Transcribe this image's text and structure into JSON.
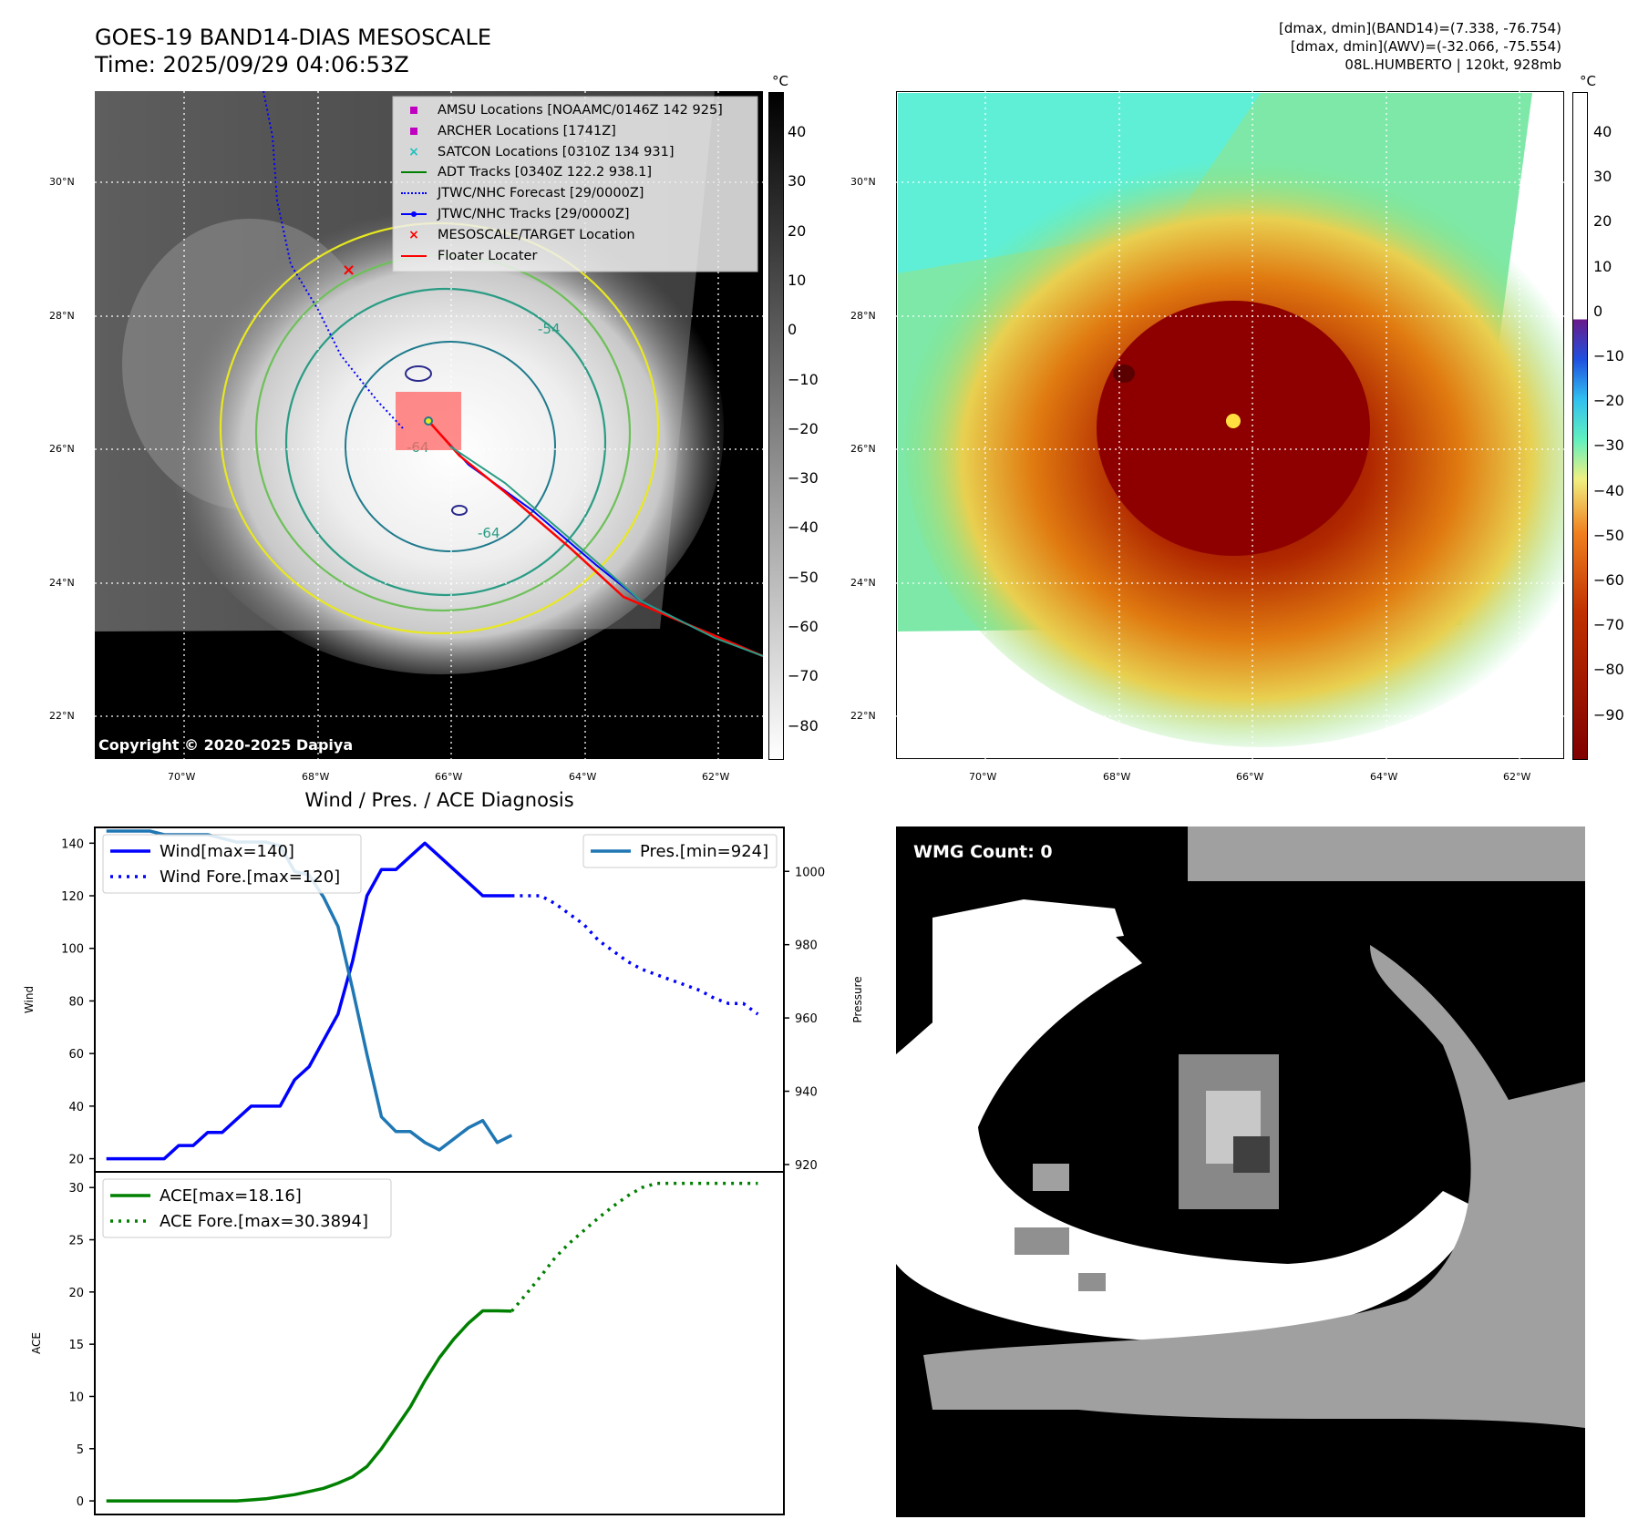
{
  "header": {
    "title_line1": "GOES-19 BAND14-DIAS MESOSCALE",
    "title_line2": "Time: 2025/09/29 04:06:53Z",
    "info_line1": "[dmax, dmin](BAND14)=(7.338, -76.754)",
    "info_line2": "[dmax, dmin](AWV)=(-32.066, -75.554)",
    "info_line3": "08L.HUMBERTO | 120kt, 928mb"
  },
  "map_left": {
    "copyright": "Copyright © 2020-2025 Dapiya",
    "contour_labels": [
      "-54",
      "-64",
      "-64"
    ],
    "legend": [
      {
        "label": "AMSU Locations [NOAAMC/0146Z 142 925]",
        "symbol": "square",
        "color": "#c000c0"
      },
      {
        "label": "ARCHER Locations [1741Z]",
        "symbol": "square",
        "color": "#c000c0"
      },
      {
        "label": "SATCON Locations [0310Z 134 931]",
        "symbol": "x",
        "color": "#20c0c0"
      },
      {
        "label": "ADT Tracks [0340Z 122.2 938.1]",
        "symbol": "line",
        "color": "#008000"
      },
      {
        "label": "JTWC/NHC Forecast [29/0000Z]",
        "symbol": "dotted",
        "color": "#0000ff"
      },
      {
        "label": "JTWC/NHC Tracks [29/0000Z]",
        "symbol": "line-dot",
        "color": "#0000ff"
      },
      {
        "label": "MESOSCALE/TARGET Location",
        "symbol": "x",
        "color": "#ff0000"
      },
      {
        "label": "Floater Locater",
        "symbol": "line",
        "color": "#ff0000"
      }
    ],
    "colorbar": {
      "unit": "°C",
      "ticks": [
        "40",
        "30",
        "20",
        "10",
        "0",
        "−10",
        "−20",
        "−30",
        "−40",
        "−50",
        "−60",
        "−70",
        "−80"
      ]
    }
  },
  "map_right": {
    "colorbar": {
      "unit": "°C",
      "ticks": [
        "40",
        "30",
        "20",
        "10",
        "0",
        "−10",
        "−20",
        "−30",
        "−40",
        "−50",
        "−60",
        "−70",
        "−80",
        "−90"
      ]
    }
  },
  "map_axes": {
    "lat_ticks": [
      "30°N",
      "28°N",
      "26°N",
      "24°N",
      "22°N"
    ],
    "lon_ticks": [
      "70°W",
      "68°W",
      "66°W",
      "64°W",
      "62°W"
    ]
  },
  "wmg": {
    "label": "WMG Count: 0"
  },
  "chart_data": [
    {
      "type": "line",
      "title": "Wind / Pres. / ACE Diagnosis",
      "ylabel": "Wind",
      "ylim": [
        15,
        146
      ],
      "yticks": [
        20,
        40,
        60,
        80,
        100,
        120,
        140
      ],
      "series": [
        {
          "name": "Wind[max=140]",
          "color": "#0000ff",
          "style": "solid",
          "x": [
            0,
            1,
            2,
            3,
            4,
            5,
            6,
            7,
            8,
            9,
            10,
            11,
            12,
            13,
            14,
            15,
            16,
            17,
            18,
            19,
            20,
            21,
            22,
            23,
            24,
            25,
            26,
            27,
            28
          ],
          "values": [
            20,
            20,
            20,
            20,
            20,
            25,
            25,
            30,
            30,
            35,
            40,
            40,
            40,
            50,
            55,
            65,
            75,
            95,
            120,
            130,
            130,
            135,
            140,
            135,
            130,
            125,
            120,
            120,
            120
          ]
        },
        {
          "name": "Wind Fore.[max=120]",
          "color": "#0000ff",
          "style": "dotted",
          "x": [
            28,
            29,
            30,
            31,
            32,
            33,
            34,
            35,
            36,
            37,
            38,
            39,
            40,
            41,
            42,
            43,
            44,
            45
          ],
          "values": [
            120,
            120,
            120,
            117,
            113,
            109,
            103,
            99,
            95,
            92,
            90,
            88,
            86,
            84,
            81,
            79,
            79,
            75
          ]
        }
      ],
      "secondary_axis": {
        "ylabel": "Pressure",
        "ylim": [
          918,
          1012
        ],
        "yticks": [
          920,
          940,
          960,
          980,
          1000
        ],
        "series": [
          {
            "name": "Pres.[min=924]",
            "color": "#1f77b4",
            "style": "solid",
            "x": [
              0,
              1,
              2,
              3,
              4,
              5,
              6,
              7,
              8,
              9,
              10,
              11,
              12,
              13,
              14,
              15,
              16,
              17,
              18,
              19,
              20,
              21,
              22,
              23,
              24,
              25,
              26,
              27,
              28
            ],
            "values": [
              1011,
              1011,
              1011,
              1011,
              1010,
              1010,
              1010,
              1010,
              1009,
              1008,
              1008,
              1008,
              1007,
              1000,
              999,
              993,
              985,
              968,
              950,
              933,
              929,
              929,
              926,
              924,
              927,
              930,
              932,
              926,
              928
            ]
          }
        ]
      },
      "legend_left": "upper-left",
      "legend_right": "upper-right"
    },
    {
      "type": "line",
      "ylabel": "ACE",
      "ylim": [
        -1.3,
        31.5
      ],
      "yticks": [
        0,
        5,
        10,
        15,
        20,
        25,
        30
      ],
      "series": [
        {
          "name": "ACE[max=18.16]",
          "color": "#008000",
          "style": "solid",
          "x": [
            0,
            1,
            2,
            3,
            4,
            5,
            6,
            7,
            8,
            9,
            10,
            11,
            12,
            13,
            14,
            15,
            16,
            17,
            18,
            19,
            20,
            21,
            22,
            23,
            24,
            25,
            26,
            27,
            28
          ],
          "values": [
            0,
            0,
            0,
            0,
            0,
            0,
            0,
            0,
            0,
            0,
            0.1,
            0.2,
            0.4,
            0.6,
            0.9,
            1.2,
            1.7,
            2.3,
            3.3,
            5.0,
            7.0,
            9.0,
            11.5,
            13.7,
            15.5,
            17.0,
            18.2,
            18.2,
            18.16
          ]
        },
        {
          "name": "ACE Fore.[max=30.3894]",
          "color": "#008000",
          "style": "dotted",
          "x": [
            28,
            29,
            30,
            31,
            32,
            33,
            34,
            35,
            36,
            37,
            38,
            39,
            40,
            41,
            42,
            43,
            44,
            45
          ],
          "values": [
            18.16,
            19.8,
            21.5,
            23.3,
            24.7,
            25.9,
            27.1,
            28.2,
            29.2,
            30.0,
            30.4,
            30.4,
            30.4,
            30.4,
            30.4,
            30.4,
            30.4,
            30.4
          ]
        }
      ],
      "legend": "upper-left"
    }
  ]
}
